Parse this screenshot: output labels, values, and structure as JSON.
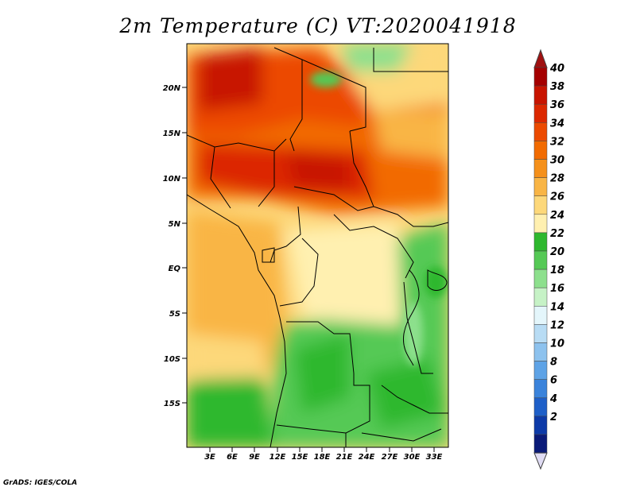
{
  "title": "2m Temperature (C) VT:2020041918",
  "credit": "GrADS: IGES/COLA",
  "map": {
    "lat_labels": [
      "20N",
      "15N",
      "10N",
      "5N",
      "EQ",
      "5S",
      "10S",
      "15S"
    ],
    "lon_labels": [
      "3E",
      "6E",
      "9E",
      "12E",
      "15E",
      "18E",
      "21E",
      "24E",
      "27E",
      "30E",
      "33E"
    ]
  },
  "colorbar": {
    "labels": [
      "40",
      "38",
      "36",
      "34",
      "32",
      "30",
      "28",
      "26",
      "24",
      "22",
      "20",
      "18",
      "16",
      "14",
      "12",
      "10",
      "8",
      "6",
      "4",
      "2"
    ],
    "colors": [
      "#a50000",
      "#c81400",
      "#dc2800",
      "#ec4a00",
      "#f26b00",
      "#f5901a",
      "#f9b545",
      "#fdd87a",
      "#fff0b0",
      "#2eb82e",
      "#55c955",
      "#8de08d",
      "#c6f2c6",
      "#e4f6fb",
      "#b8dcf4",
      "#8dc2ee",
      "#5ea3e6",
      "#3a83db",
      "#1e5fc8",
      "#0d3aa8",
      "#0a1a78"
    ],
    "top_cap": "#a01010",
    "bottom_cap": "#e0dcf4"
  }
}
